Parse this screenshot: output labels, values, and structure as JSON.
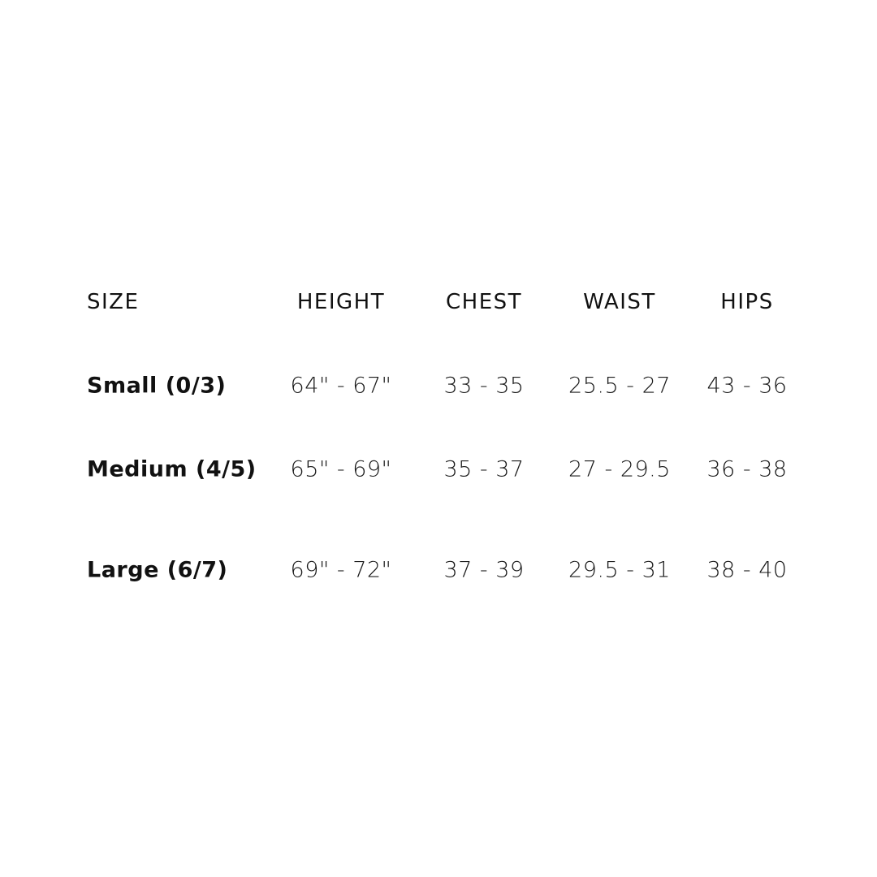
{
  "headers": [
    "SIZE",
    "HEIGHT",
    "CHEST",
    "WAIST",
    "HIPS"
  ],
  "rows": [
    {
      "size": "Small (0/3)",
      "height": "64\" - 67\"",
      "chest": "33 - 35",
      "waist": "25.5 - 27",
      "hips": "43 - 36"
    },
    {
      "size": "Medium (4/5)",
      "height": "65\" - 69\"",
      "chest": "35 - 37",
      "waist": "27 - 29.5",
      "hips": "36 - 38"
    },
    {
      "size": "Large (6/7)",
      "height": "69\" - 72\"",
      "chest": "37 - 39",
      "waist": "29.5 - 31",
      "hips": "38 - 40"
    }
  ]
}
